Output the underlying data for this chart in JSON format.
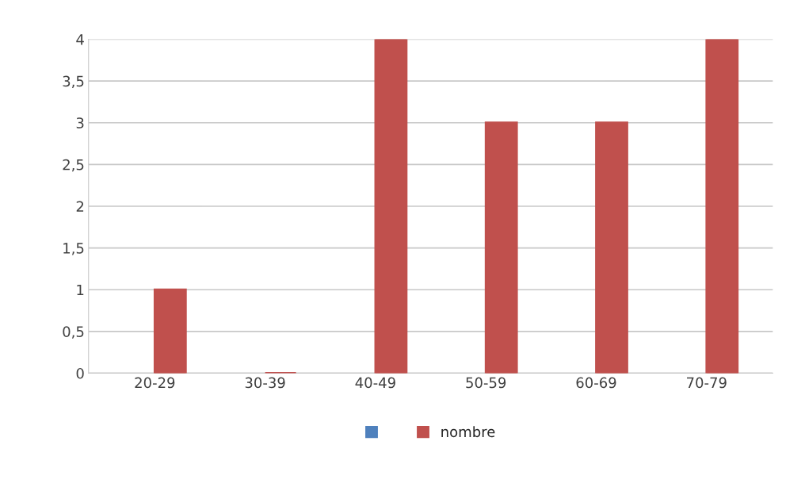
{
  "chart_data": {
    "type": "bar",
    "categories": [
      "20-29",
      "30-39",
      "40-49",
      "50-59",
      "60-69",
      "70-79"
    ],
    "series": [
      {
        "color": "#4f81bd",
        "values": [
          null,
          null,
          null,
          null,
          null,
          null
        ]
      },
      {
        "name": "nombre",
        "color": "#c0504d",
        "values": [
          1,
          0,
          4,
          3,
          3,
          4
        ]
      }
    ],
    "ylim": [
      0,
      4
    ],
    "yticks": [
      0,
      {
        "value": 0.5,
        "label": "0,5"
      },
      1,
      {
        "value": 1.5,
        "label": "1,5"
      },
      2,
      {
        "value": 2.5,
        "label": "2,5"
      },
      3,
      {
        "value": 3.5,
        "label": "3,5"
      },
      4
    ],
    "grid": "y",
    "legend": "bottom"
  }
}
